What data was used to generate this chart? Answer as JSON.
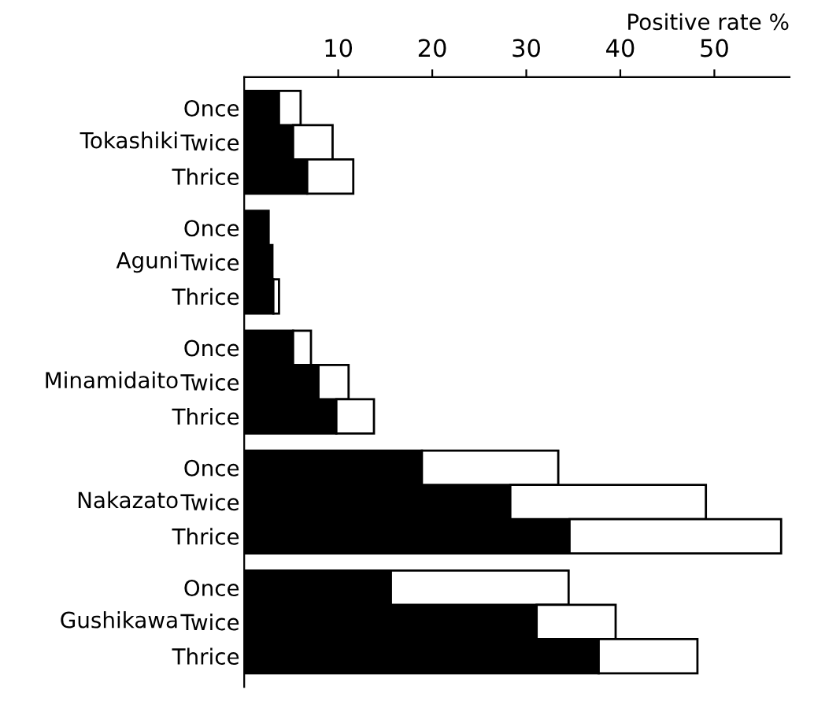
{
  "chart_data": {
    "type": "bar",
    "orientation": "horizontal",
    "xlabel": "Positive rate %",
    "categories": [
      "Once",
      "Twice",
      "Thrice",
      "Once",
      "Twice",
      "Thrice",
      "Once",
      "Twice",
      "Thrice",
      "Once",
      "Twice",
      "Thrice",
      "Once",
      "Twice",
      "Thrice"
    ],
    "annotations": [
      "Tokashiki",
      "Aguni",
      "Minamidaito",
      "Nakazato",
      "Gushikawa"
    ],
    "stacked": true,
    "series": [
      {
        "color": "#000000",
        "values": [
          3.7,
          5.2,
          6.7,
          2.6,
          3.0,
          3.1,
          5.2,
          7.9,
          9.8,
          18.9,
          28.3,
          34.6,
          15.6,
          31.1,
          37.7
        ]
      },
      {
        "color": "#ffffff",
        "values": [
          2.3,
          4.2,
          4.9,
          null,
          null,
          0.6,
          1.9,
          3.2,
          4.0,
          14.5,
          20.8,
          22.5,
          18.9,
          8.4,
          10.5
        ]
      }
    ],
    "xlim": [
      0,
      58
    ],
    "xticks": [
      10,
      20,
      30,
      40,
      50
    ],
    "grid": false,
    "legend": false
  }
}
